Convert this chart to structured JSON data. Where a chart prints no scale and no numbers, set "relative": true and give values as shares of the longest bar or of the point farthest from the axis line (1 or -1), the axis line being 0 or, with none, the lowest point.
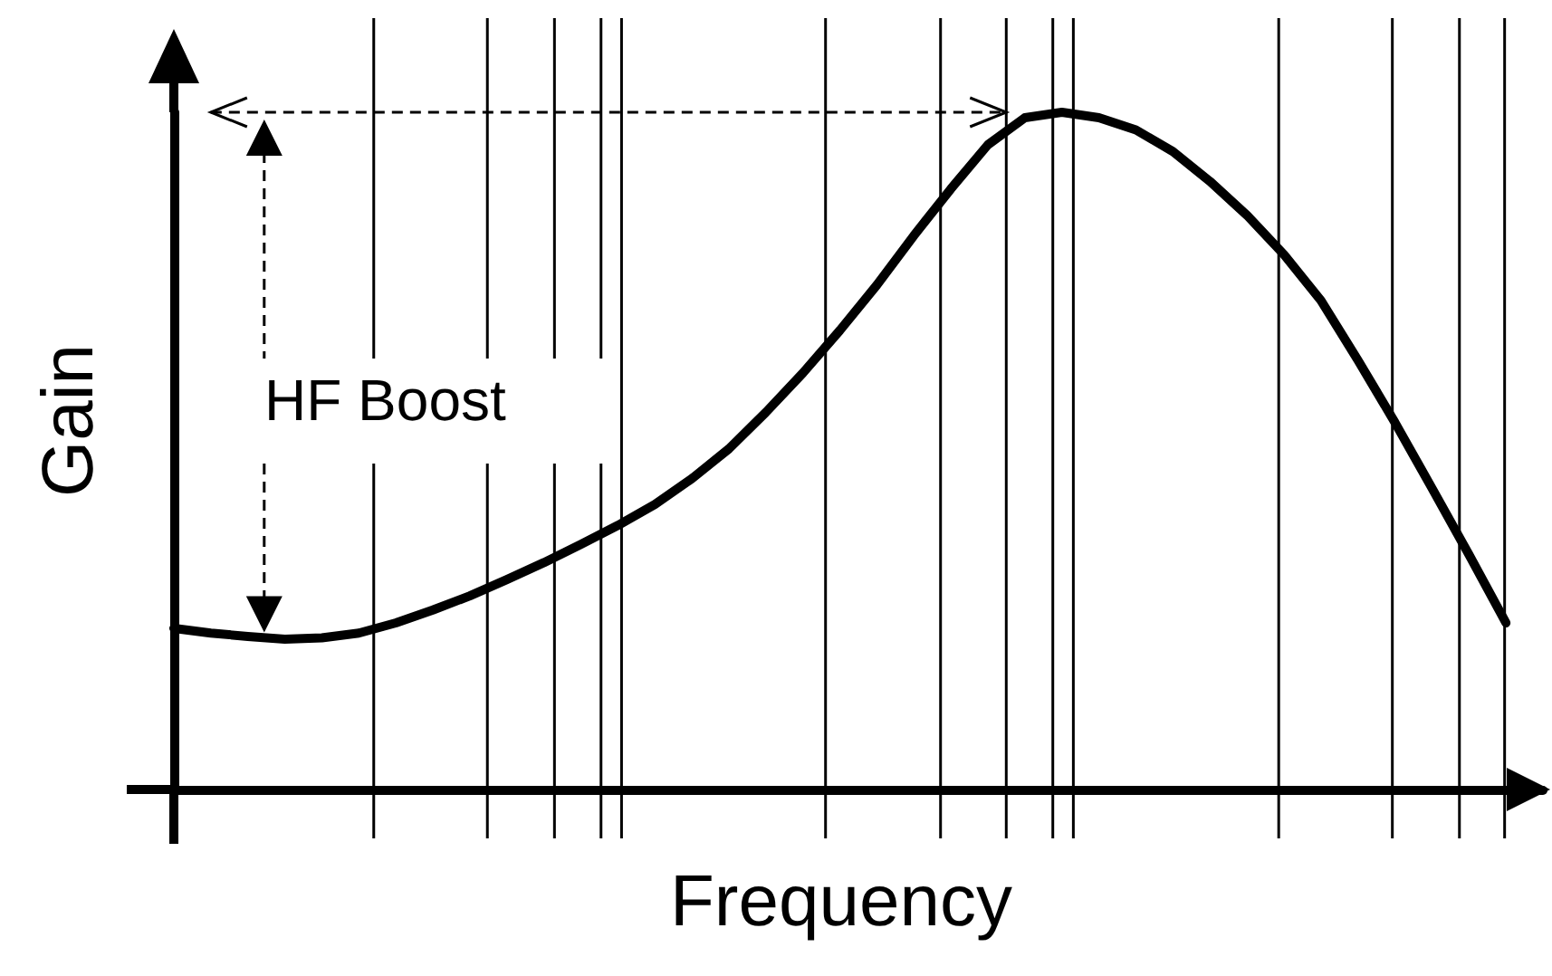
{
  "chart_data": {
    "type": "line",
    "relative": true,
    "xlabel": "Frequency",
    "ylabel": "Gain",
    "annotations": [
      "HF Boost"
    ],
    "color": "#000000",
    "marker": "none",
    "line_style": "solid",
    "grid": "x",
    "ref_lines": [
      {
        "axis": "y",
        "value": 1,
        "line_style": "dashed"
      }
    ],
    "categories": [
      null,
      null,
      null,
      null,
      null,
      null,
      null,
      null,
      null,
      null,
      null,
      null,
      null,
      null,
      null,
      null,
      null,
      null,
      null,
      null,
      null,
      null,
      null,
      null,
      null,
      null,
      null,
      null,
      null,
      null,
      null,
      null,
      null,
      null,
      null,
      null,
      null,
      null
    ],
    "values": [
      0.238,
      0.231,
      0.226,
      0.222,
      0.224,
      0.231,
      0.246,
      0.265,
      0.286,
      0.31,
      0.335,
      0.362,
      0.39,
      0.421,
      0.459,
      0.503,
      0.557,
      0.615,
      0.678,
      0.745,
      0.818,
      0.887,
      0.952,
      0.992,
      1,
      0.992,
      0.974,
      0.942,
      0.898,
      0.848,
      0.79,
      0.722,
      0.634,
      0.542,
      0.445,
      0.347,
      0.246,
      null
    ]
  }
}
